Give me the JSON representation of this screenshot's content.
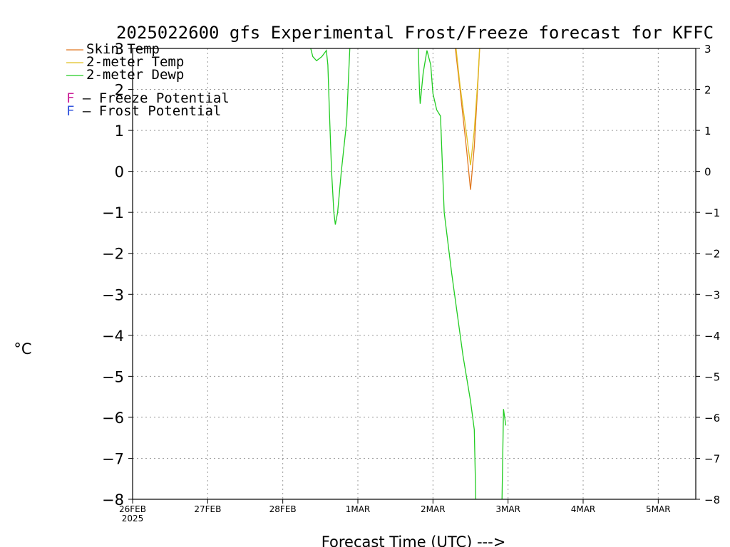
{
  "chart_data": {
    "type": "line",
    "title": "2025022600 gfs Experimental Frost/Freeze forecast for KFFC",
    "ylabel": "°C",
    "xlabel": "Forecast Time (UTC) --->",
    "ylim": [
      -8,
      3
    ],
    "xlim": [
      0,
      7.5
    ],
    "grid": true,
    "legend_position": "top-left",
    "yticks": [
      -8,
      -7,
      -6,
      -5,
      -4,
      -3,
      -2,
      -1,
      0,
      1,
      2,
      3
    ],
    "xticks": [
      {
        "x": 0,
        "label": "26FEB",
        "sublabel": "2025"
      },
      {
        "x": 1,
        "label": "27FEB",
        "sublabel": ""
      },
      {
        "x": 2,
        "label": "28FEB",
        "sublabel": ""
      },
      {
        "x": 3,
        "label": "1MAR",
        "sublabel": ""
      },
      {
        "x": 4,
        "label": "2MAR",
        "sublabel": ""
      },
      {
        "x": 5,
        "label": "3MAR",
        "sublabel": ""
      },
      {
        "x": 6,
        "label": "4MAR",
        "sublabel": ""
      },
      {
        "x": 7,
        "label": "5MAR",
        "sublabel": ""
      }
    ],
    "series": [
      {
        "name": "Skin Temp",
        "color": "#e07820",
        "points": [
          [
            4.28,
            3.3
          ],
          [
            4.36,
            2.0
          ],
          [
            4.45,
            0.5
          ],
          [
            4.5,
            -0.45
          ],
          [
            4.55,
            0.6
          ],
          [
            4.6,
            2.2
          ],
          [
            4.63,
            3.3
          ]
        ]
      },
      {
        "name": "2-meter Temp",
        "color": "#e0c020",
        "points": [
          [
            4.29,
            3.3
          ],
          [
            4.36,
            2.1
          ],
          [
            4.44,
            1.0
          ],
          [
            4.5,
            0.15
          ],
          [
            4.55,
            1.0
          ],
          [
            4.6,
            2.3
          ],
          [
            4.63,
            3.3
          ]
        ]
      },
      {
        "name": "2-meter Dewp",
        "color": "#22cc22",
        "segments": [
          [
            [
              2.33,
              3.3
            ],
            [
              2.4,
              2.8
            ],
            [
              2.45,
              2.7
            ],
            [
              2.52,
              2.8
            ],
            [
              2.58,
              2.95
            ],
            [
              2.6,
              2.6
            ],
            [
              2.62,
              1.5
            ],
            [
              2.65,
              0.0
            ],
            [
              2.68,
              -1.0
            ],
            [
              2.7,
              -1.3
            ],
            [
              2.73,
              -1.0
            ],
            [
              2.78,
              0.0
            ],
            [
              2.85,
              1.2
            ],
            [
              2.88,
              2.5
            ],
            [
              2.9,
              3.3
            ]
          ],
          [
            [
              3.8,
              3.3
            ],
            [
              3.82,
              2.0
            ],
            [
              3.83,
              1.65
            ],
            [
              3.87,
              2.4
            ],
            [
              3.92,
              2.95
            ],
            [
              3.97,
              2.6
            ],
            [
              4.0,
              1.9
            ],
            [
              4.05,
              1.5
            ],
            [
              4.1,
              1.35
            ],
            [
              4.15,
              -1.0
            ],
            [
              4.25,
              -2.5
            ],
            [
              4.4,
              -4.5
            ],
            [
              4.5,
              -5.6
            ],
            [
              4.55,
              -6.3
            ],
            [
              4.57,
              -8.0
            ]
          ],
          [
            [
              4.92,
              -8.0
            ],
            [
              4.94,
              -5.8
            ],
            [
              4.97,
              -6.2
            ]
          ]
        ]
      }
    ],
    "annotations": [
      {
        "symbol": "F",
        "symbol_color": "#cc2299",
        "text": " – Freeze Potential"
      },
      {
        "symbol": "F",
        "symbol_color": "#3355dd",
        "text": " – Frost Potential"
      }
    ]
  }
}
